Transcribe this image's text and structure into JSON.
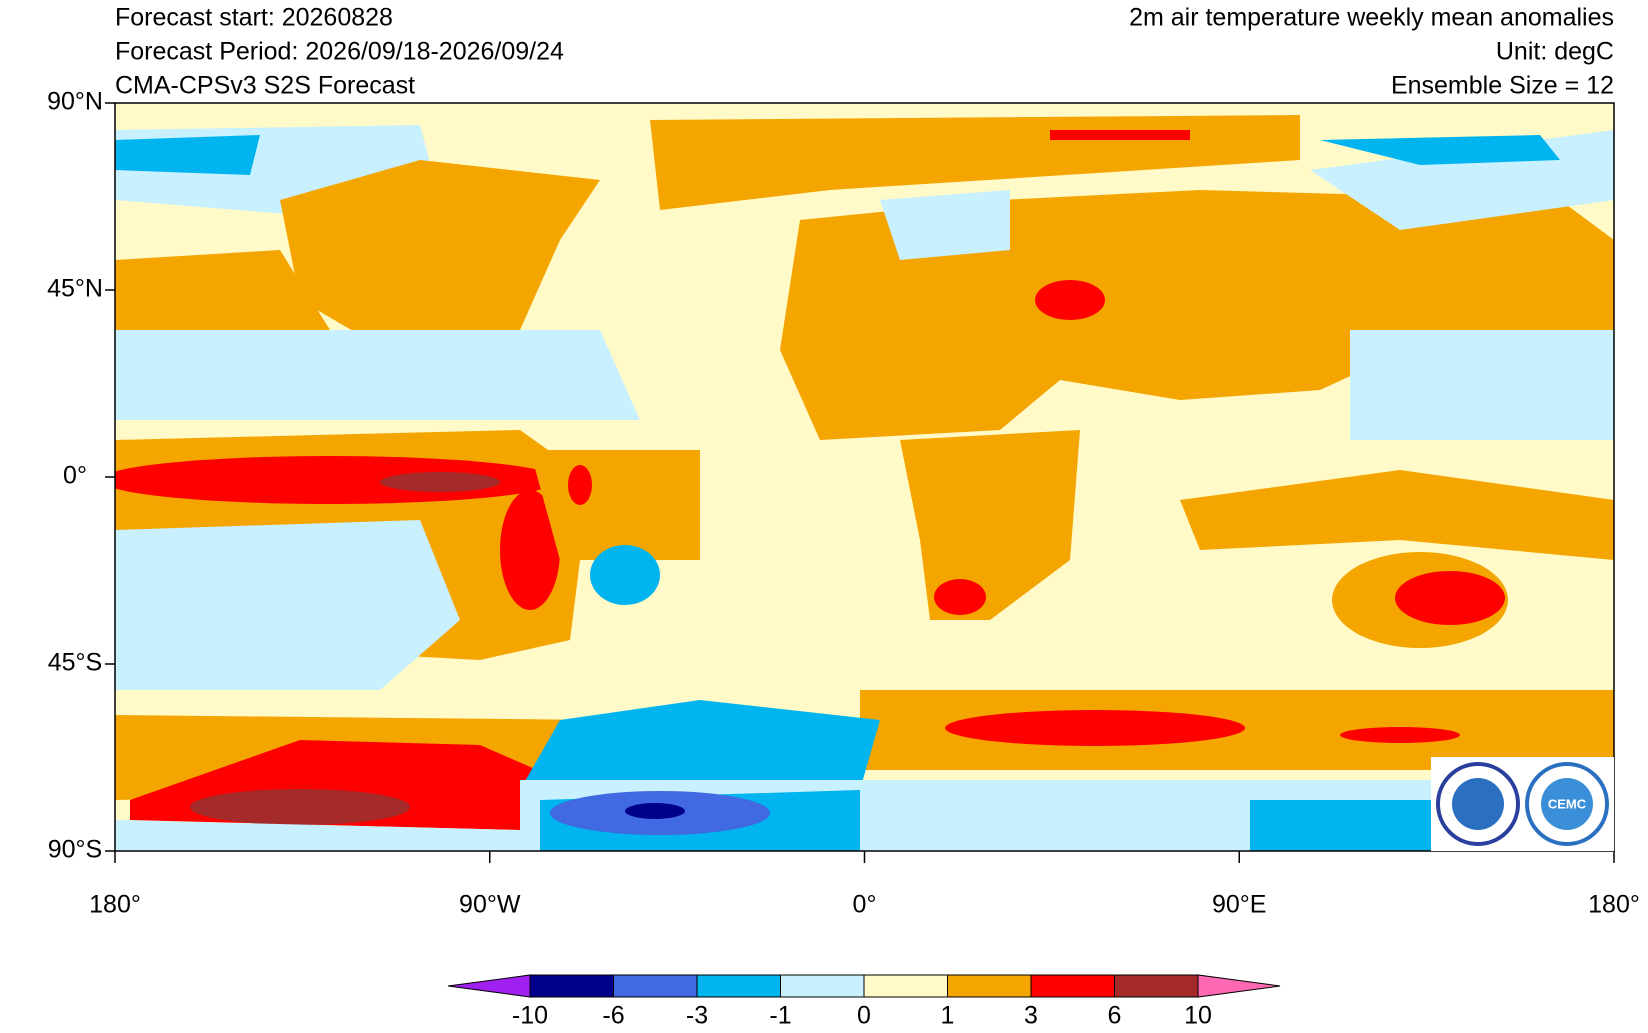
{
  "header": {
    "left": [
      "Forecast start: 20260828",
      "Forecast Period: 2026/09/18-2026/09/24",
      "CMA-CPSv3 S2S Forecast"
    ],
    "right": [
      "2m air temperature weekly mean anomalies",
      "Unit: degC",
      "Ensemble Size = 12"
    ]
  },
  "map": {
    "lat_ticks": [
      {
        "value": 90,
        "label": "90°N"
      },
      {
        "value": 45,
        "label": "45°N"
      },
      {
        "value": 0,
        "label": "0°"
      },
      {
        "value": -45,
        "label": "45°S"
      },
      {
        "value": -90,
        "label": "90°S"
      }
    ],
    "lon_ticks": [
      {
        "value": -180,
        "label": "180°"
      },
      {
        "value": -90,
        "label": "90°W"
      },
      {
        "value": 0,
        "label": "0°"
      },
      {
        "value": 90,
        "label": "90°E"
      },
      {
        "value": 180,
        "label": "180°"
      }
    ],
    "latlim": [
      -90,
      90
    ],
    "lonlim": [
      -180,
      180
    ]
  },
  "colorbar": {
    "levels": [
      -10,
      -6,
      -3,
      -1,
      0,
      1,
      3,
      6,
      10
    ],
    "colors": [
      "#a020f0",
      "#00008b",
      "#4169e1",
      "#00b4f0",
      "#c8f0ff",
      "#fffac8",
      "#f5a500",
      "#ff0000",
      "#a52a2a",
      "#ff69b4"
    ]
  },
  "logos": {
    "right": "CEMC"
  }
}
